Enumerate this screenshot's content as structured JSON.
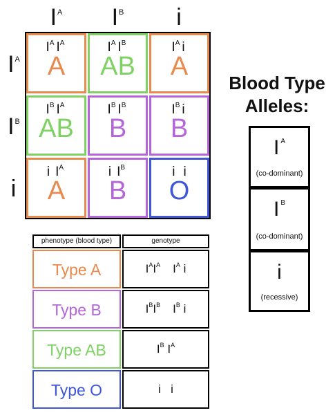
{
  "colors": {
    "A": "#e8894d",
    "B": "#b565d9",
    "AB": "#7fd164",
    "O": "#3f57d6",
    "border": "#000000"
  },
  "columns": [
    {
      "base": "I",
      "sup": "A"
    },
    {
      "base": "I",
      "sup": "B"
    },
    {
      "base": "i",
      "sup": ""
    }
  ],
  "rows": [
    {
      "base": "I",
      "sup": "A"
    },
    {
      "base": "I",
      "sup": "B"
    },
    {
      "base": "i",
      "sup": ""
    }
  ],
  "punnett": [
    [
      {
        "g1": "I",
        "s1": "A",
        "g2": "I",
        "s2": "A",
        "phenotype": "A",
        "color": "#e8894d"
      },
      {
        "g1": "I",
        "s1": "A",
        "g2": "I",
        "s2": "B",
        "phenotype": "AB",
        "color": "#7fd164"
      },
      {
        "g1": "I",
        "s1": "A",
        "g2": "i",
        "s2": "",
        "phenotype": "A",
        "color": "#e8894d"
      }
    ],
    [
      {
        "g1": "I",
        "s1": "B",
        "g2": "I",
        "s2": "A",
        "phenotype": "AB",
        "color": "#7fd164"
      },
      {
        "g1": "I",
        "s1": "B",
        "g2": "I",
        "s2": "B",
        "phenotype": "B",
        "color": "#b565d9"
      },
      {
        "g1": "I",
        "s1": "B",
        "g2": "i",
        "s2": "",
        "phenotype": "B",
        "color": "#b565d9"
      }
    ],
    [
      {
        "g1": "i",
        "s1": "",
        "g2": "I",
        "s2": "A",
        "phenotype": "A",
        "color": "#e8894d"
      },
      {
        "g1": "i",
        "s1": "",
        "g2": "I",
        "s2": "B",
        "phenotype": "B",
        "color": "#b565d9"
      },
      {
        "g1": "i",
        "s1": "",
        "g2": "i",
        "s2": "",
        "phenotype": "O",
        "color": "#3f57d6"
      }
    ]
  ],
  "legend": {
    "title_line1": "Blood Type",
    "title_line2": "Alleles:",
    "alleles": [
      {
        "base": "I",
        "sup": "A",
        "note": "(co-dominant)"
      },
      {
        "base": "I",
        "sup": "B",
        "note": "(co-dominant)"
      },
      {
        "base": "i",
        "sup": "",
        "note": "(recessive)"
      }
    ]
  },
  "table": {
    "header_phenotype": "phenotype (blood type)",
    "header_genotype": "genotype",
    "rows": [
      {
        "type": "Type A",
        "color": "#e8894d",
        "genotypes": [
          [
            {
              "b": "I",
              "s": "A"
            },
            {
              "b": "I",
              "s": "A"
            }
          ],
          [
            {
              "b": "I",
              "s": "A"
            },
            {
              "b": "i",
              "s": ""
            }
          ]
        ]
      },
      {
        "type": "Type B",
        "color": "#b565d9",
        "genotypes": [
          [
            {
              "b": "I",
              "s": "B"
            },
            {
              "b": "I",
              "s": "B"
            }
          ],
          [
            {
              "b": "I",
              "s": "B"
            },
            {
              "b": "i",
              "s": ""
            }
          ]
        ]
      },
      {
        "type": "Type AB",
        "color": "#7fd164",
        "genotypes": [
          [
            {
              "b": "I",
              "s": "B"
            },
            {
              "b": "I",
              "s": "A"
            }
          ]
        ]
      },
      {
        "type": "Type O",
        "color": "#3f57d6",
        "genotypes": [
          [
            {
              "b": "i",
              "s": ""
            },
            {
              "b": "i",
              "s": ""
            }
          ]
        ]
      }
    ]
  }
}
